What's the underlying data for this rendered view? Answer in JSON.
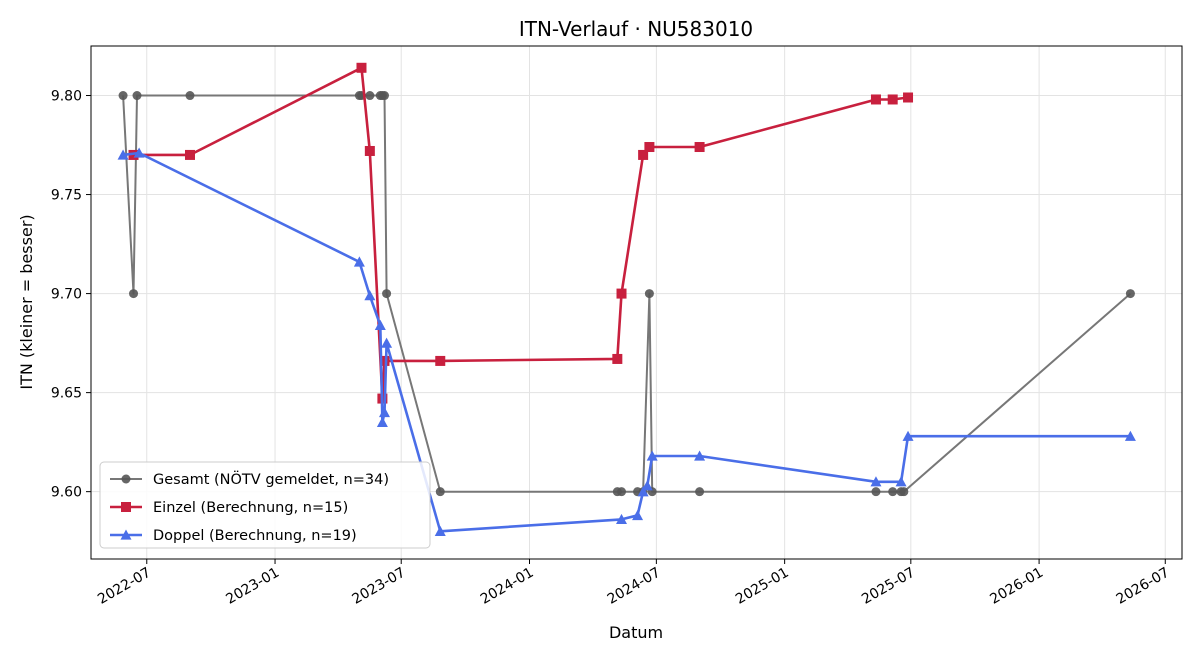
{
  "chart_data": {
    "type": "line",
    "title": "ITN-Verlauf · NU583010",
    "xlabel": "Datum",
    "ylabel": "ITN  (kleiner = besser)",
    "x_type": "date",
    "xlim": [
      "2022-04-12",
      "2026-07-25"
    ],
    "ylim": [
      9.566,
      9.825
    ],
    "x_ticks": [
      {
        "date": "2022-07-01",
        "label": "2022-07"
      },
      {
        "date": "2023-01-01",
        "label": "2023-01"
      },
      {
        "date": "2023-07-01",
        "label": "2023-07"
      },
      {
        "date": "2024-01-01",
        "label": "2024-01"
      },
      {
        "date": "2024-07-01",
        "label": "2024-07"
      },
      {
        "date": "2025-01-01",
        "label": "2025-01"
      },
      {
        "date": "2025-07-01",
        "label": "2025-07"
      },
      {
        "date": "2026-01-01",
        "label": "2026-01"
      },
      {
        "date": "2026-07-01",
        "label": "2026-07"
      }
    ],
    "y_ticks": [
      {
        "value": 9.6,
        "label": "9.60"
      },
      {
        "value": 9.65,
        "label": "9.65"
      },
      {
        "value": 9.7,
        "label": "9.70"
      },
      {
        "value": 9.75,
        "label": "9.75"
      },
      {
        "value": 9.8,
        "label": "9.80"
      }
    ],
    "grid": true,
    "legend_position": "lower-left",
    "series": [
      {
        "name": "Gesamt (NÖTV gemeldet, n=34)",
        "color": "#555555",
        "marker": "circle",
        "points": [
          {
            "x": "2022-05-28",
            "y": 9.8
          },
          {
            "x": "2022-06-12",
            "y": 9.7
          },
          {
            "x": "2022-06-17",
            "y": 9.8
          },
          {
            "x": "2022-09-01",
            "y": 9.8
          },
          {
            "x": "2023-05-02",
            "y": 9.8
          },
          {
            "x": "2023-05-05",
            "y": 9.8
          },
          {
            "x": "2023-05-17",
            "y": 9.8
          },
          {
            "x": "2023-06-01",
            "y": 9.8
          },
          {
            "x": "2023-06-04",
            "y": 9.8
          },
          {
            "x": "2023-06-07",
            "y": 9.8
          },
          {
            "x": "2023-06-10",
            "y": 9.7
          },
          {
            "x": "2023-08-26",
            "y": 9.6
          },
          {
            "x": "2024-05-06",
            "y": 9.6
          },
          {
            "x": "2024-05-12",
            "y": 9.6
          },
          {
            "x": "2024-06-04",
            "y": 9.6
          },
          {
            "x": "2024-06-12",
            "y": 9.6
          },
          {
            "x": "2024-06-21",
            "y": 9.7
          },
          {
            "x": "2024-06-25",
            "y": 9.6
          },
          {
            "x": "2024-09-01",
            "y": 9.6
          },
          {
            "x": "2025-05-12",
            "y": 9.6
          },
          {
            "x": "2025-06-05",
            "y": 9.6
          },
          {
            "x": "2025-06-17",
            "y": 9.6
          },
          {
            "x": "2025-06-21",
            "y": 9.6
          },
          {
            "x": "2026-05-12",
            "y": 9.7
          }
        ]
      },
      {
        "name": "Einzel (Berechnung, n=15)",
        "color": "#c8203e",
        "marker": "square",
        "points": [
          {
            "x": "2022-06-12",
            "y": 9.77
          },
          {
            "x": "2022-09-01",
            "y": 9.77
          },
          {
            "x": "2023-05-05",
            "y": 9.814
          },
          {
            "x": "2023-05-17",
            "y": 9.772
          },
          {
            "x": "2023-06-04",
            "y": 9.647
          },
          {
            "x": "2023-06-07",
            "y": 9.666
          },
          {
            "x": "2023-08-26",
            "y": 9.666
          },
          {
            "x": "2024-05-06",
            "y": 9.667
          },
          {
            "x": "2024-05-12",
            "y": 9.7
          },
          {
            "x": "2024-06-12",
            "y": 9.77
          },
          {
            "x": "2024-06-21",
            "y": 9.774
          },
          {
            "x": "2024-09-01",
            "y": 9.774
          },
          {
            "x": "2025-05-12",
            "y": 9.798
          },
          {
            "x": "2025-06-05",
            "y": 9.798
          },
          {
            "x": "2025-06-27",
            "y": 9.799
          }
        ]
      },
      {
        "name": "Doppel (Berechnung, n=19)",
        "color": "#4a6ee8",
        "marker": "triangle",
        "points": [
          {
            "x": "2022-05-28",
            "y": 9.77
          },
          {
            "x": "2022-06-20",
            "y": 9.771
          },
          {
            "x": "2023-05-02",
            "y": 9.716
          },
          {
            "x": "2023-05-17",
            "y": 9.699
          },
          {
            "x": "2023-06-01",
            "y": 9.684
          },
          {
            "x": "2023-06-04",
            "y": 9.635
          },
          {
            "x": "2023-06-07",
            "y": 9.64
          },
          {
            "x": "2023-06-10",
            "y": 9.675
          },
          {
            "x": "2023-08-26",
            "y": 9.58
          },
          {
            "x": "2024-05-12",
            "y": 9.586
          },
          {
            "x": "2024-06-04",
            "y": 9.588
          },
          {
            "x": "2024-06-12",
            "y": 9.6
          },
          {
            "x": "2024-06-18",
            "y": 9.603
          },
          {
            "x": "2024-06-25",
            "y": 9.618
          },
          {
            "x": "2024-09-01",
            "y": 9.618
          },
          {
            "x": "2025-05-12",
            "y": 9.605
          },
          {
            "x": "2025-06-17",
            "y": 9.605
          },
          {
            "x": "2025-06-27",
            "y": 9.628
          },
          {
            "x": "2026-05-12",
            "y": 9.628
          }
        ]
      }
    ]
  }
}
